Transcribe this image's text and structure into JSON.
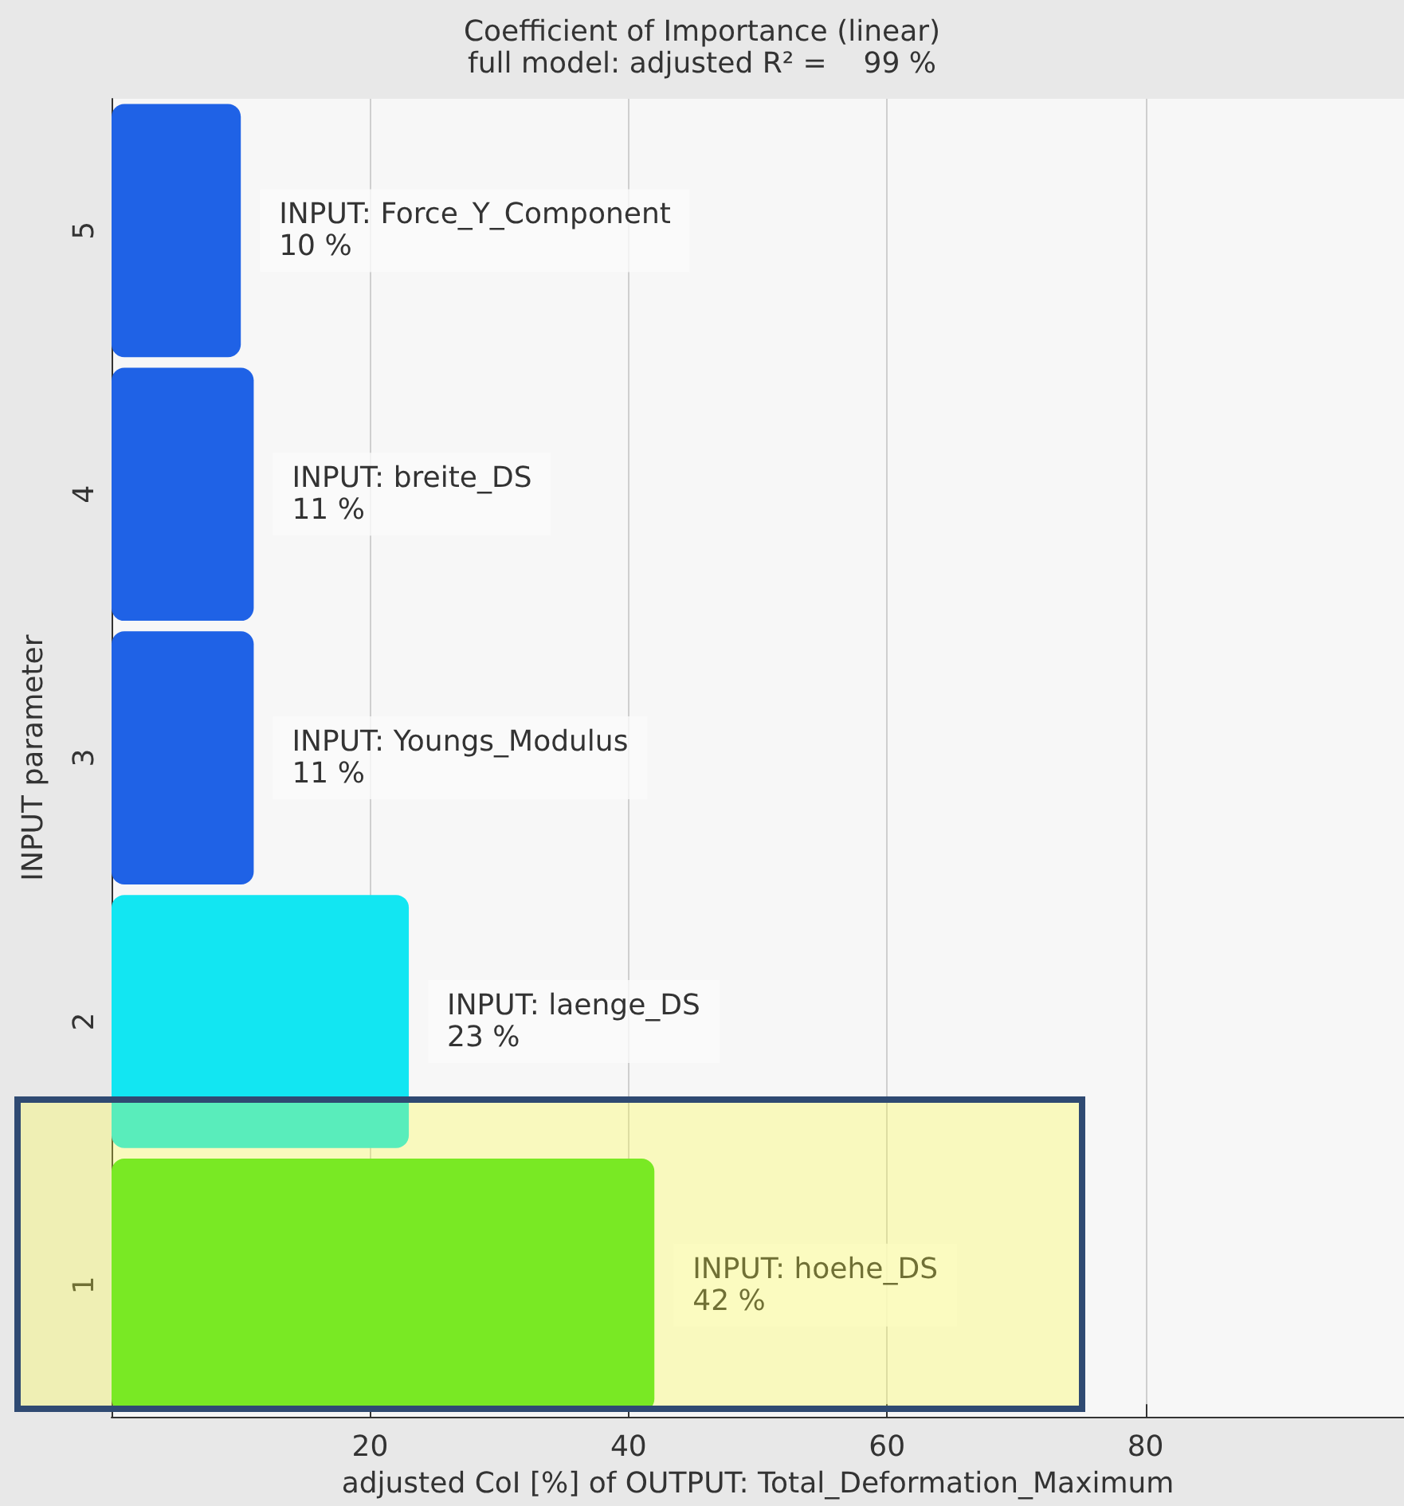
{
  "chart_data": {
    "type": "bar",
    "orientation": "horizontal",
    "title": "Coefficient of Importance (linear)",
    "subtitle": "full model: adjusted R² =    99 %",
    "xlabel": "adjusted CoI [%] of OUTPUT: Total_Deformation_Maximum",
    "ylabel": "INPUT parameter",
    "categories": [
      "5",
      "4",
      "3",
      "2",
      "1"
    ],
    "values": [
      10,
      11,
      11,
      23,
      42
    ],
    "colors": [
      "#1f62e6",
      "#1f62e6",
      "#1f62e6",
      "#12e6f2",
      "#3fe01a"
    ],
    "value_labels": [
      "INPUT: Force_Y_Component\n10 %",
      "INPUT: breite_DS\n11 %",
      "INPUT: Youngs_Modulus\n11 %",
      "INPUT: laenge_DS\n23 %",
      "INPUT: hoehe_DS\n42 %"
    ],
    "xlim": [
      0,
      100
    ],
    "xticks": [
      20,
      40,
      60,
      80
    ],
    "grid": "x"
  }
}
